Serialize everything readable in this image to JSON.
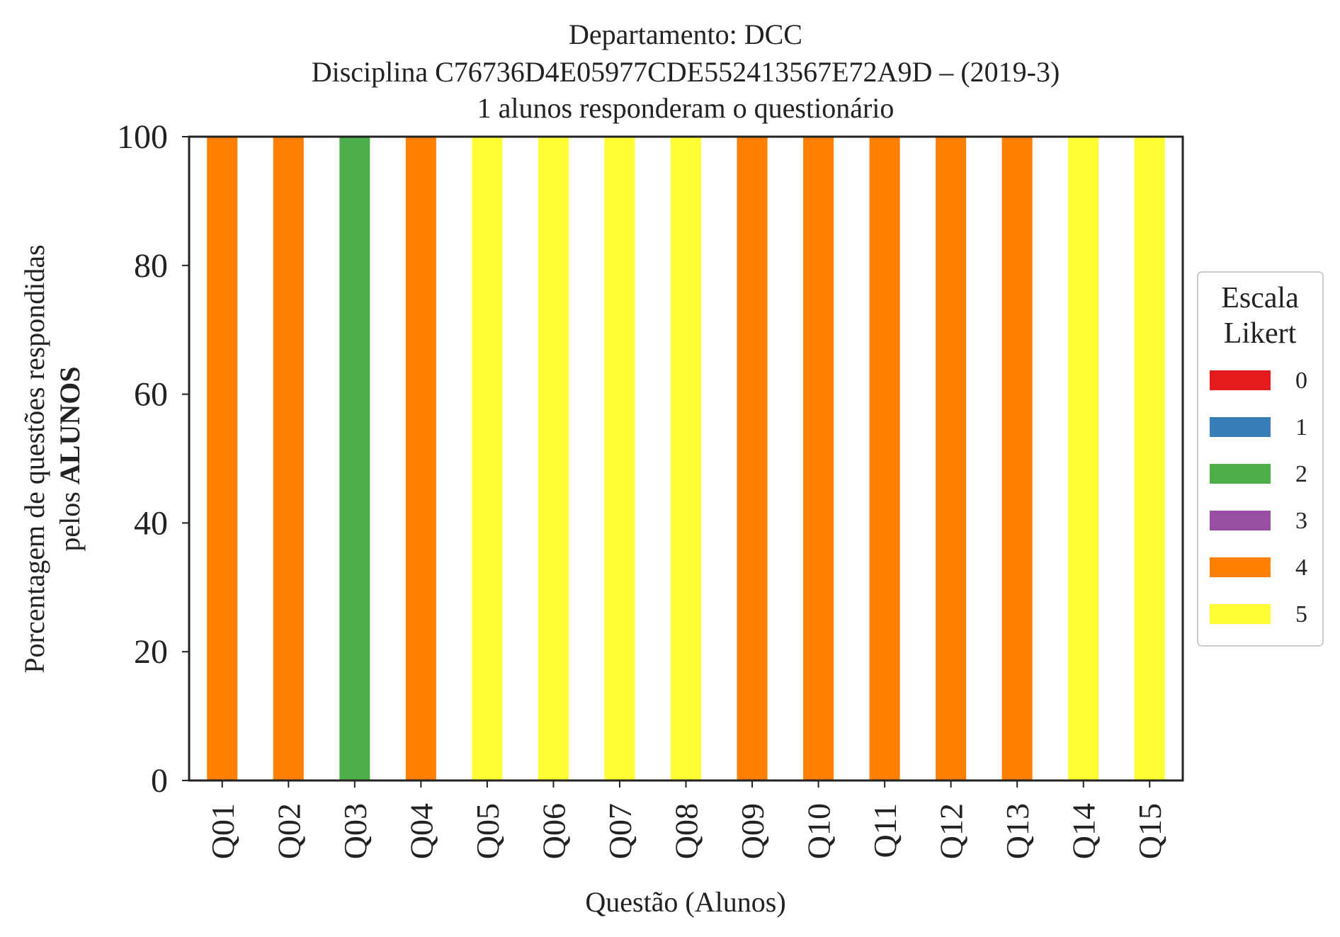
{
  "chart_data": {
    "type": "bar",
    "stacked": true,
    "title_lines": [
      "Departamento: DCC",
      "Disciplina C76736D4E05977CDE552413567E72A9D – (2019-3)",
      "1 alunos responderam o questionário"
    ],
    "xlabel": "Questão (Alunos)",
    "ylabel_line1": "Porcentagem de questões respondidas",
    "ylabel_line2_prefix": "pelos ",
    "ylabel_line2_bold": "ALUNOS",
    "ylim": [
      0,
      100
    ],
    "yticks": [
      "0",
      "20",
      "40",
      "60",
      "80",
      "100"
    ],
    "grid": false,
    "legend_position": "right",
    "legend_title_lines": [
      "Escala",
      "Likert"
    ],
    "categories": [
      "Q01",
      "Q02",
      "Q03",
      "Q04",
      "Q05",
      "Q06",
      "Q07",
      "Q08",
      "Q09",
      "Q10",
      "Q11",
      "Q12",
      "Q13",
      "Q14",
      "Q15"
    ],
    "series": [
      {
        "name": "0",
        "color": "#e41a1c",
        "values": [
          0,
          0,
          0,
          0,
          0,
          0,
          0,
          0,
          0,
          0,
          0,
          0,
          0,
          0,
          0
        ]
      },
      {
        "name": "1",
        "color": "#377eb8",
        "values": [
          0,
          0,
          0,
          0,
          0,
          0,
          0,
          0,
          0,
          0,
          0,
          0,
          0,
          0,
          0
        ]
      },
      {
        "name": "2",
        "color": "#4daf4a",
        "values": [
          0,
          0,
          100,
          0,
          0,
          0,
          0,
          0,
          0,
          0,
          0,
          0,
          0,
          0,
          0
        ]
      },
      {
        "name": "3",
        "color": "#984ea3",
        "values": [
          0,
          0,
          0,
          0,
          0,
          0,
          0,
          0,
          0,
          0,
          0,
          0,
          0,
          0,
          0
        ]
      },
      {
        "name": "4",
        "color": "#ff7f00",
        "values": [
          100,
          100,
          0,
          100,
          0,
          0,
          0,
          0,
          100,
          100,
          100,
          100,
          100,
          0,
          0
        ]
      },
      {
        "name": "5",
        "color": "#ffff33",
        "values": [
          0,
          0,
          0,
          0,
          100,
          100,
          100,
          100,
          0,
          0,
          0,
          0,
          0,
          100,
          100
        ]
      }
    ]
  }
}
